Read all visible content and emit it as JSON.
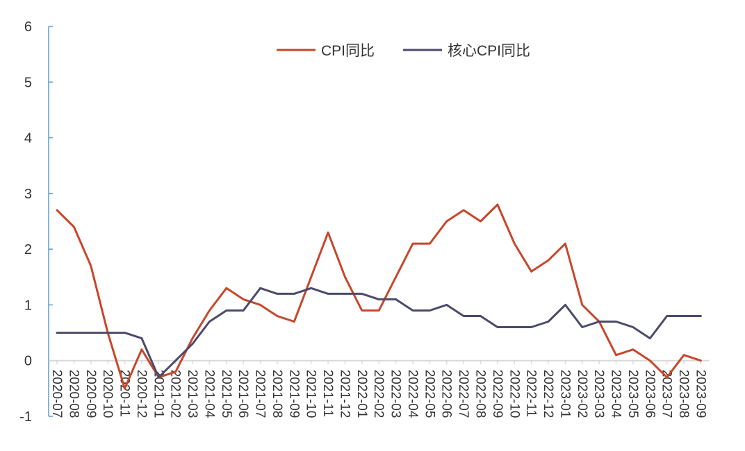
{
  "chart_data": {
    "type": "line",
    "title": "",
    "xlabel": "",
    "ylabel": "",
    "ylim": [
      -1,
      6
    ],
    "yticks": [
      "-1",
      "0",
      "1",
      "2",
      "3",
      "4",
      "5",
      "6"
    ],
    "grid": false,
    "legend_position": "top-center",
    "categories": [
      "2020-07",
      "2020-08",
      "2020-09",
      "2020-10",
      "2020-11",
      "2020-12",
      "2021-01",
      "2021-02",
      "2021-03",
      "2021-04",
      "2021-05",
      "2021-06",
      "2021-07",
      "2021-08",
      "2021-09",
      "2021-10",
      "2021-11",
      "2021-12",
      "2022-01",
      "2022-02",
      "2022-03",
      "2022-04",
      "2022-05",
      "2022-06",
      "2022-07",
      "2022-08",
      "2022-09",
      "2022-10",
      "2022-11",
      "2022-12",
      "2023-01",
      "2023-02",
      "2023-03",
      "2023-04",
      "2023-05",
      "2023-06",
      "2023-07",
      "2023-08",
      "2023-09"
    ],
    "category_labels_shown": [
      "2020-07",
      "2020-08",
      "2020-09",
      "2020-10",
      "2020-11",
      "2020-12",
      "2021-01",
      "2021-02",
      "2021-03",
      "2021-04",
      "2021-05",
      "2021-06",
      "2021-07",
      "2021-08",
      "2021-09",
      "2021-10",
      "2021-11",
      "2021-12",
      "2022-01",
      "2022-02",
      "2022-03",
      "2022-04",
      "2022-05",
      "2022-06",
      "2022-07",
      "2022-08",
      "2022-09",
      "2022-10",
      "2022-11",
      "2022-12",
      "2023-01",
      "2023-02",
      "2023-03",
      "2023-04",
      "2023-05",
      "2023-06",
      "2023-07",
      "2023-08",
      "2023-09"
    ],
    "series": [
      {
        "name": "CPI同比",
        "color": "#c8462b",
        "values": [
          2.7,
          2.4,
          1.7,
          0.5,
          -0.5,
          0.2,
          -0.3,
          -0.2,
          0.4,
          0.9,
          1.3,
          1.1,
          1.0,
          0.8,
          0.7,
          1.5,
          2.3,
          1.5,
          0.9,
          0.9,
          1.5,
          2.1,
          2.1,
          2.5,
          2.7,
          2.5,
          2.8,
          2.1,
          1.6,
          1.8,
          2.1,
          1.0,
          0.7,
          0.1,
          0.2,
          0.0,
          -0.3,
          0.1,
          0.0
        ]
      },
      {
        "name": "核心CPI同比",
        "color": "#4b4a6b",
        "values": [
          0.5,
          0.5,
          0.5,
          0.5,
          0.5,
          0.4,
          -0.3,
          0.0,
          0.3,
          0.7,
          0.9,
          0.9,
          1.3,
          1.2,
          1.2,
          1.3,
          1.2,
          1.2,
          1.2,
          1.1,
          1.1,
          0.9,
          0.9,
          1.0,
          0.8,
          0.8,
          0.6,
          0.6,
          0.6,
          0.7,
          1.0,
          0.6,
          0.7,
          0.7,
          0.6,
          0.4,
          0.8,
          0.8,
          0.8
        ]
      }
    ]
  }
}
